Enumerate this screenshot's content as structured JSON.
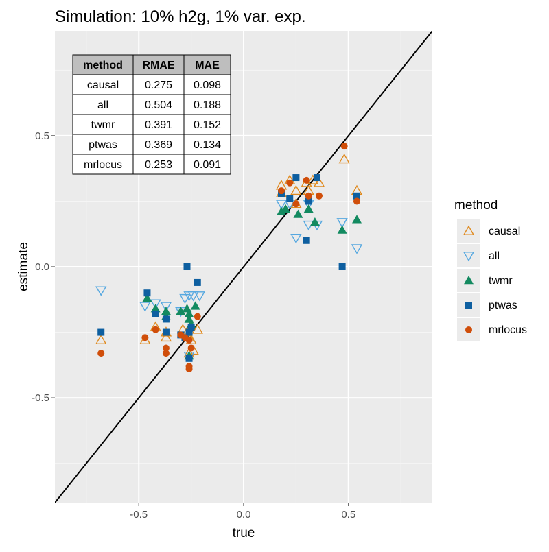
{
  "chart_data": {
    "type": "scatter",
    "title": "Simulation: 10% h2g, 1% var. exp.",
    "xlabel": "true",
    "ylabel": "estimate",
    "xlim": [
      -0.9,
      0.9
    ],
    "ylim": [
      -0.9,
      0.9
    ],
    "xticks": [
      -0.5,
      0.0,
      0.5
    ],
    "xtick_labels": [
      "-0.5",
      "0.0",
      "0.5"
    ],
    "yticks": [
      -0.5,
      0.0,
      0.5
    ],
    "ytick_labels": [
      "-0.5",
      "0.0",
      "0.5"
    ],
    "grid": true,
    "reference_line": {
      "type": "identity",
      "slope": 1,
      "intercept": 0
    },
    "legend": {
      "title": "method",
      "position": "right",
      "entries": [
        {
          "name": "causal",
          "shape": "open-triangle-up",
          "color": "#E08A1E"
        },
        {
          "name": "all",
          "shape": "open-triangle-down",
          "color": "#56A8E0"
        },
        {
          "name": "twmr",
          "shape": "filled-triangle-up",
          "color": "#138A60"
        },
        {
          "name": "ptwas",
          "shape": "filled-square",
          "color": "#0E5FA0"
        },
        {
          "name": "mrlocus",
          "shape": "filled-circle",
          "color": "#D04E0A"
        }
      ]
    },
    "table": {
      "columns": [
        "method",
        "RMAE",
        "MAE"
      ],
      "rows": [
        [
          "causal",
          "0.275",
          "0.098"
        ],
        [
          "all",
          "0.504",
          "0.188"
        ],
        [
          "twmr",
          "0.391",
          "0.152"
        ],
        [
          "ptwas",
          "0.369",
          "0.134"
        ],
        [
          "mrlocus",
          "0.253",
          "0.091"
        ]
      ]
    },
    "series": [
      {
        "name": "causal",
        "points": [
          [
            -0.68,
            -0.28
          ],
          [
            -0.47,
            -0.28
          ],
          [
            -0.42,
            -0.23
          ],
          [
            -0.37,
            -0.25
          ],
          [
            -0.37,
            -0.27
          ],
          [
            -0.29,
            -0.24
          ],
          [
            -0.27,
            -0.25
          ],
          [
            -0.26,
            -0.27
          ],
          [
            -0.25,
            -0.28
          ],
          [
            -0.26,
            -0.33
          ],
          [
            -0.24,
            -0.32
          ],
          [
            -0.22,
            -0.24
          ],
          [
            0.18,
            0.31
          ],
          [
            0.18,
            0.28
          ],
          [
            0.22,
            0.33
          ],
          [
            0.25,
            0.29
          ],
          [
            0.25,
            0.24
          ],
          [
            0.3,
            0.32
          ],
          [
            0.31,
            0.29
          ],
          [
            0.33,
            0.33
          ],
          [
            0.36,
            0.32
          ],
          [
            0.48,
            0.41
          ],
          [
            0.54,
            0.29
          ]
        ]
      },
      {
        "name": "all",
        "points": [
          [
            -0.68,
            -0.09
          ],
          [
            -0.47,
            -0.15
          ],
          [
            -0.42,
            -0.14
          ],
          [
            -0.37,
            -0.15
          ],
          [
            -0.3,
            -0.17
          ],
          [
            -0.28,
            -0.12
          ],
          [
            -0.26,
            -0.11
          ],
          [
            -0.24,
            -0.11
          ],
          [
            -0.21,
            -0.11
          ],
          [
            -0.26,
            -0.34
          ],
          [
            0.18,
            0.24
          ],
          [
            0.22,
            0.24
          ],
          [
            0.25,
            0.11
          ],
          [
            0.31,
            0.24
          ],
          [
            0.31,
            0.16
          ],
          [
            0.35,
            0.16
          ],
          [
            0.47,
            0.17
          ],
          [
            0.54,
            0.07
          ]
        ]
      },
      {
        "name": "twmr",
        "points": [
          [
            -0.46,
            -0.12
          ],
          [
            -0.42,
            -0.16
          ],
          [
            -0.37,
            -0.17
          ],
          [
            -0.37,
            -0.19
          ],
          [
            -0.3,
            -0.17
          ],
          [
            -0.27,
            -0.16
          ],
          [
            -0.26,
            -0.18
          ],
          [
            -0.26,
            -0.2
          ],
          [
            -0.25,
            -0.22
          ],
          [
            -0.23,
            -0.15
          ],
          [
            -0.26,
            -0.34
          ],
          [
            0.18,
            0.21
          ],
          [
            0.2,
            0.22
          ],
          [
            0.26,
            0.2
          ],
          [
            0.31,
            0.22
          ],
          [
            0.34,
            0.17
          ],
          [
            0.47,
            0.14
          ],
          [
            0.54,
            0.18
          ]
        ]
      },
      {
        "name": "ptwas",
        "points": [
          [
            -0.68,
            -0.25
          ],
          [
            -0.46,
            -0.1
          ],
          [
            -0.42,
            -0.18
          ],
          [
            -0.37,
            -0.2
          ],
          [
            -0.37,
            -0.25
          ],
          [
            -0.3,
            -0.26
          ],
          [
            -0.27,
            0.0
          ],
          [
            -0.26,
            -0.25
          ],
          [
            -0.25,
            -0.23
          ],
          [
            -0.22,
            -0.06
          ],
          [
            -0.26,
            -0.35
          ],
          [
            -0.28,
            -0.27
          ],
          [
            0.18,
            0.28
          ],
          [
            0.22,
            0.26
          ],
          [
            0.25,
            0.34
          ],
          [
            0.3,
            0.1
          ],
          [
            0.31,
            0.25
          ],
          [
            0.35,
            0.34
          ],
          [
            0.47,
            0.0
          ],
          [
            0.54,
            0.27
          ]
        ]
      },
      {
        "name": "mrlocus",
        "points": [
          [
            -0.68,
            -0.33
          ],
          [
            -0.47,
            -0.27
          ],
          [
            -0.42,
            -0.24
          ],
          [
            -0.37,
            -0.31
          ],
          [
            -0.37,
            -0.33
          ],
          [
            -0.3,
            -0.26
          ],
          [
            -0.28,
            -0.27
          ],
          [
            -0.26,
            -0.28
          ],
          [
            -0.26,
            -0.38
          ],
          [
            -0.26,
            -0.39
          ],
          [
            -0.25,
            -0.31
          ],
          [
            -0.22,
            -0.19
          ],
          [
            0.18,
            0.29
          ],
          [
            0.22,
            0.32
          ],
          [
            0.25,
            0.24
          ],
          [
            0.3,
            0.33
          ],
          [
            0.31,
            0.27
          ],
          [
            0.36,
            0.27
          ],
          [
            0.48,
            0.46
          ],
          [
            0.54,
            0.25
          ]
        ]
      }
    ]
  }
}
